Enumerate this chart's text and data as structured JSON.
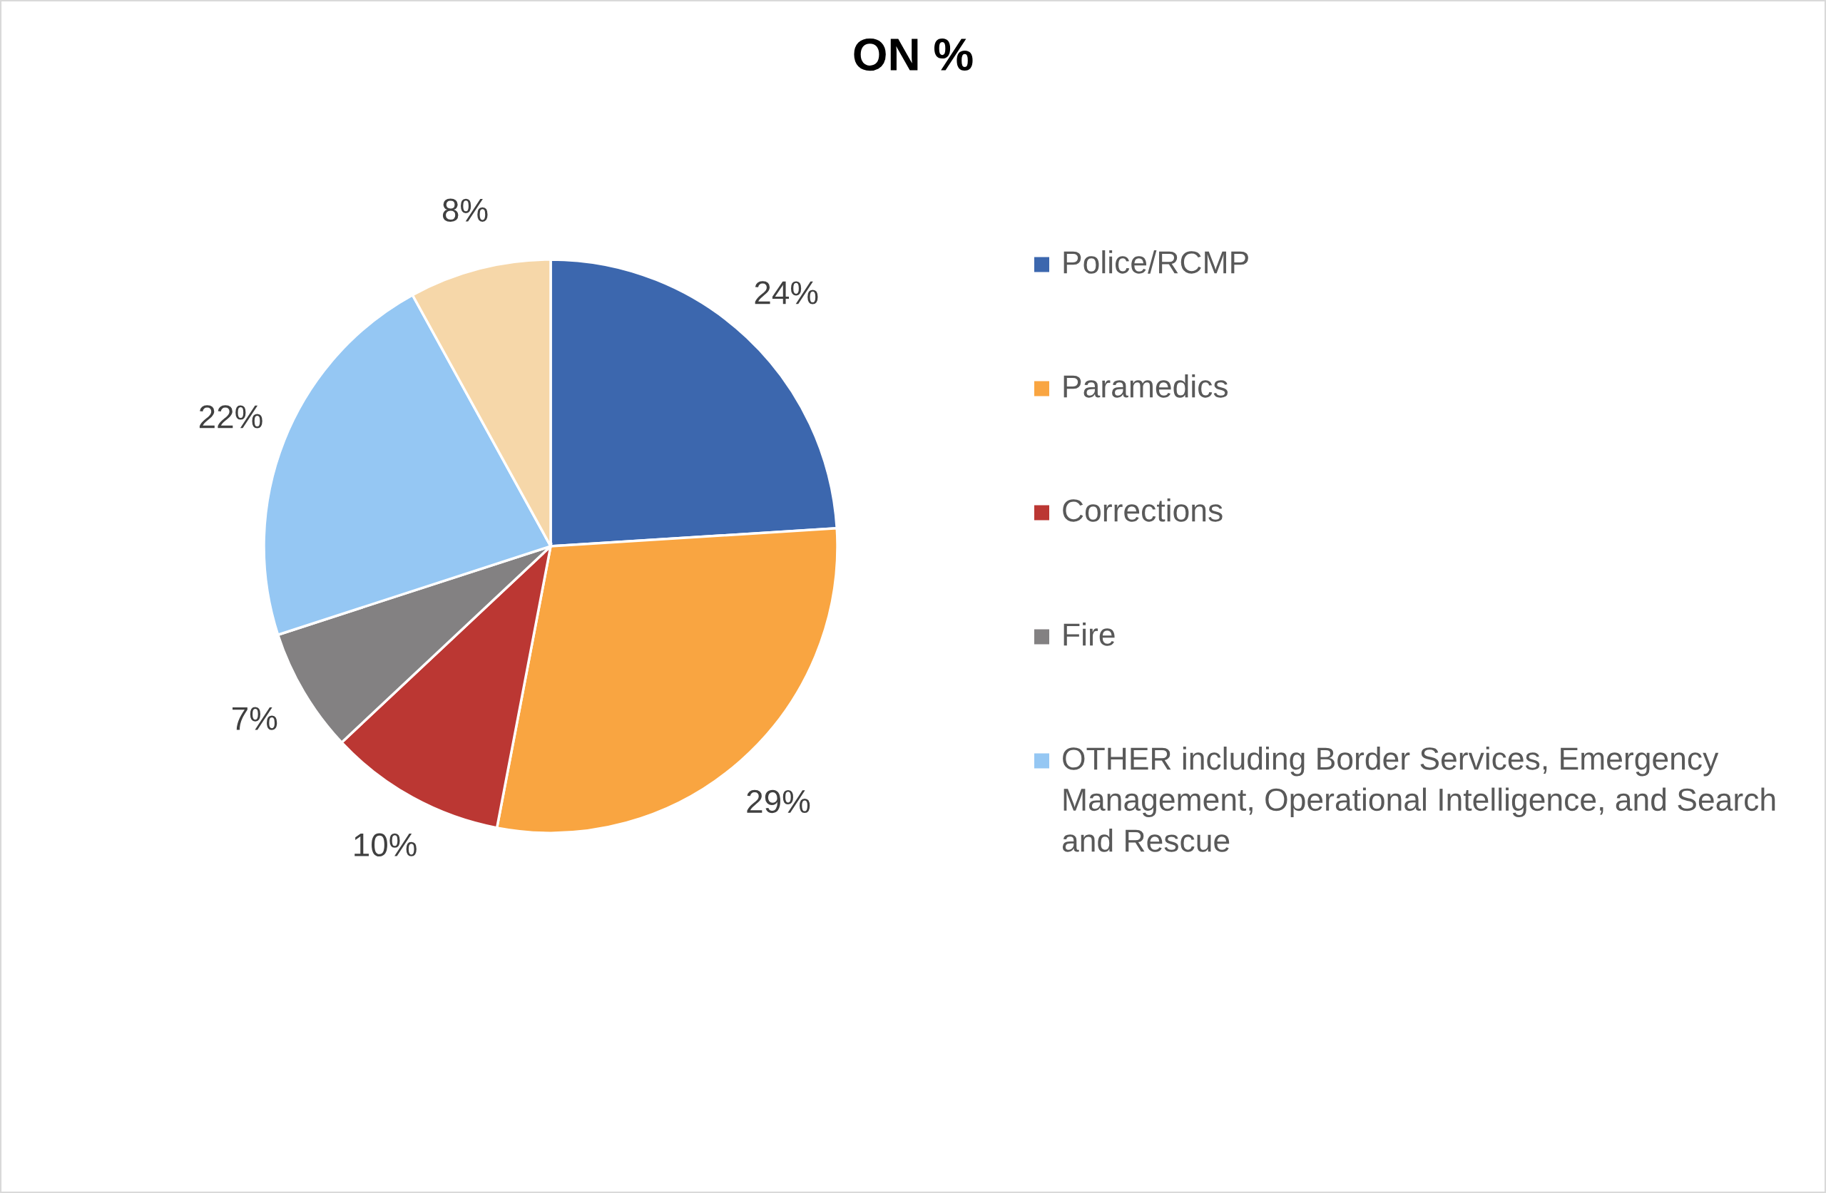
{
  "chart_data": {
    "type": "pie",
    "title": "ON %",
    "categories": [
      "Police/RCMP",
      "Paramedics",
      "Corrections",
      "Fire",
      "OTHER including Border Services, Emergency Management, Operational Intelligence, and Search and Rescue",
      null
    ],
    "values": [
      24,
      29,
      10,
      7,
      22,
      8
    ],
    "colors": [
      "#3c67ae",
      "#f9a541",
      "#bb3733",
      "#838182",
      "#95c7f3",
      "#f6d7a9"
    ],
    "value_labels": [
      "24%",
      "29%",
      "10%",
      "7%",
      "22%",
      "8%"
    ],
    "legend": "right"
  }
}
